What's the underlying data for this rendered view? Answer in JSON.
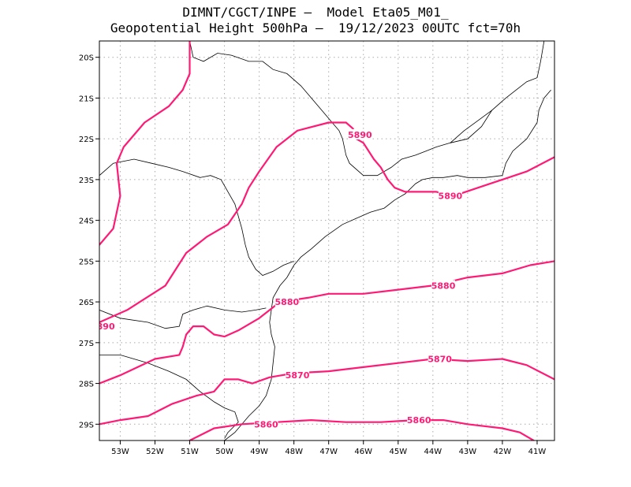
{
  "header": {
    "line1": "DIMNT/CGCT/INPE –  Model Eta05_M01_",
    "line2": "Geopotential Height 500hPa –  19/12/2023 00UTC fct=70h"
  },
  "axes": {
    "lon_min": -53.6,
    "lon_max": -40.5,
    "lat_min": -29.4,
    "lat_max": -19.6,
    "x_ticks": [
      {
        "value": -53,
        "label": "53W"
      },
      {
        "value": -52,
        "label": "52W"
      },
      {
        "value": -51,
        "label": "51W"
      },
      {
        "value": -50,
        "label": "50W"
      },
      {
        "value": -49,
        "label": "49W"
      },
      {
        "value": -48,
        "label": "48W"
      },
      {
        "value": -47,
        "label": "47W"
      },
      {
        "value": -46,
        "label": "46W"
      },
      {
        "value": -45,
        "label": "45W"
      },
      {
        "value": -44,
        "label": "44W"
      },
      {
        "value": -43,
        "label": "43W"
      },
      {
        "value": -42,
        "label": "42W"
      },
      {
        "value": -41,
        "label": "41W"
      }
    ],
    "y_ticks": [
      {
        "value": -20,
        "label": "20S"
      },
      {
        "value": -21,
        "label": "21S"
      },
      {
        "value": -22,
        "label": "22S"
      },
      {
        "value": -23,
        "label": "23S"
      },
      {
        "value": -24,
        "label": "24S"
      },
      {
        "value": -25,
        "label": "25S"
      },
      {
        "value": -26,
        "label": "26S"
      },
      {
        "value": -27,
        "label": "27S"
      },
      {
        "value": -28,
        "label": "28S"
      },
      {
        "value": -29,
        "label": "29S"
      }
    ],
    "grid": "dotted"
  },
  "colors": {
    "contour": "#ff1a75",
    "coast": "#000000",
    "grid": "#aaaaaa"
  },
  "chart_data": {
    "type": "line",
    "series": [
      {
        "name": "5890",
        "label_positions": [
          [
            -46.1,
            -21.9
          ],
          [
            -43.5,
            -23.4
          ]
        ],
        "points": [
          [
            -53.6,
            -24.6
          ],
          [
            -53.2,
            -24.2
          ],
          [
            -53.0,
            -23.4
          ],
          [
            -53.1,
            -22.6
          ],
          [
            -52.9,
            -22.2
          ],
          [
            -52.3,
            -21.6
          ],
          [
            -51.6,
            -21.2
          ],
          [
            -51.2,
            -20.8
          ],
          [
            -51.0,
            -20.4
          ],
          [
            -51.0,
            -19.6
          ]
        ]
      },
      {
        "name": "5890",
        "points": [
          [
            -53.6,
            -26.5
          ],
          [
            -52.8,
            -26.2
          ],
          [
            -51.7,
            -25.6
          ],
          [
            -51.1,
            -24.8
          ],
          [
            -50.5,
            -24.4
          ],
          [
            -49.9,
            -24.1
          ],
          [
            -49.5,
            -23.6
          ],
          [
            -49.3,
            -23.2
          ],
          [
            -49.0,
            -22.8
          ],
          [
            -48.5,
            -22.2
          ],
          [
            -47.9,
            -21.8
          ],
          [
            -47.0,
            -21.6
          ],
          [
            -46.5,
            -21.6
          ],
          [
            -46.3,
            -21.75
          ],
          [
            -46.2,
            -22.0
          ],
          [
            -46.0,
            -22.1
          ],
          [
            -45.7,
            -22.5
          ],
          [
            -45.5,
            -22.7
          ],
          [
            -45.3,
            -23.0
          ],
          [
            -45.1,
            -23.2
          ],
          [
            -44.8,
            -23.3
          ],
          [
            -44.4,
            -23.3
          ],
          [
            -43.9,
            -23.3
          ],
          [
            -43.4,
            -23.4
          ],
          [
            -42.7,
            -23.2
          ],
          [
            -42.0,
            -23.0
          ],
          [
            -41.3,
            -22.8
          ],
          [
            -40.5,
            -22.45
          ]
        ]
      },
      {
        "name": "5880",
        "label_positions": [
          [
            -48.2,
            -26.0
          ],
          [
            -43.7,
            -25.6
          ]
        ],
        "points": [
          [
            -53.6,
            -28.0
          ],
          [
            -53.0,
            -27.8
          ],
          [
            -52.0,
            -27.4
          ],
          [
            -51.3,
            -27.3
          ],
          [
            -51.2,
            -27.1
          ],
          [
            -51.1,
            -26.8
          ],
          [
            -50.9,
            -26.6
          ],
          [
            -50.6,
            -26.6
          ],
          [
            -50.3,
            -26.8
          ],
          [
            -50.0,
            -26.85
          ],
          [
            -49.6,
            -26.7
          ],
          [
            -49.0,
            -26.4
          ],
          [
            -48.4,
            -26.0
          ],
          [
            -47.6,
            -25.9
          ],
          [
            -47.0,
            -25.8
          ],
          [
            -46.0,
            -25.8
          ],
          [
            -45.0,
            -25.7
          ],
          [
            -44.0,
            -25.6
          ],
          [
            -43.0,
            -25.4
          ],
          [
            -42.0,
            -25.3
          ],
          [
            -41.2,
            -25.1
          ],
          [
            -40.5,
            -25.0
          ]
        ]
      },
      {
        "name": "5870",
        "label_positions": [
          [
            -47.9,
            -27.8
          ],
          [
            -43.8,
            -27.4
          ]
        ],
        "points": [
          [
            -53.6,
            -29.0
          ],
          [
            -53.0,
            -28.9
          ],
          [
            -52.2,
            -28.8
          ],
          [
            -51.5,
            -28.5
          ],
          [
            -50.8,
            -28.3
          ],
          [
            -50.3,
            -28.2
          ],
          [
            -50.0,
            -27.9
          ],
          [
            -49.6,
            -27.9
          ],
          [
            -49.2,
            -28.0
          ],
          [
            -48.7,
            -27.85
          ],
          [
            -48.0,
            -27.75
          ],
          [
            -47.0,
            -27.7
          ],
          [
            -46.0,
            -27.6
          ],
          [
            -45.0,
            -27.5
          ],
          [
            -44.0,
            -27.4
          ],
          [
            -43.0,
            -27.45
          ],
          [
            -42.0,
            -27.4
          ],
          [
            -41.3,
            -27.55
          ],
          [
            -40.5,
            -27.9
          ]
        ]
      },
      {
        "name": "5860",
        "label_positions": [
          [
            -48.8,
            -29.0
          ],
          [
            -44.4,
            -28.9
          ]
        ],
        "points": [
          [
            -51.0,
            -29.4
          ],
          [
            -50.3,
            -29.1
          ],
          [
            -49.5,
            -29.0
          ],
          [
            -48.5,
            -28.95
          ],
          [
            -47.5,
            -28.9
          ],
          [
            -46.5,
            -28.95
          ],
          [
            -45.5,
            -28.95
          ],
          [
            -44.5,
            -28.9
          ],
          [
            -43.7,
            -28.9
          ],
          [
            -43.0,
            -29.0
          ],
          [
            -42.0,
            -29.1
          ],
          [
            -41.5,
            -29.2
          ],
          [
            -41.1,
            -29.4
          ]
        ]
      }
    ]
  },
  "boundaries": [
    [
      [
        -51.0,
        -19.6
      ],
      [
        -50.9,
        -20.0
      ],
      [
        -50.6,
        -20.1
      ],
      [
        -50.2,
        -19.9
      ],
      [
        -49.8,
        -19.95
      ],
      [
        -49.3,
        -20.1
      ],
      [
        -48.9,
        -20.1
      ],
      [
        -48.6,
        -20.3
      ],
      [
        -48.2,
        -20.4
      ],
      [
        -47.8,
        -20.7
      ],
      [
        -47.5,
        -21.0
      ],
      [
        -47.2,
        -21.3
      ],
      [
        -46.9,
        -21.6
      ],
      [
        -46.7,
        -21.8
      ],
      [
        -46.6,
        -22.0
      ],
      [
        -46.5,
        -22.4
      ],
      [
        -46.4,
        -22.6
      ],
      [
        -46.0,
        -22.9
      ],
      [
        -45.6,
        -22.9
      ],
      [
        -45.2,
        -22.7
      ],
      [
        -44.9,
        -22.5
      ],
      [
        -44.5,
        -22.4
      ],
      [
        -44.2,
        -22.3
      ],
      [
        -43.9,
        -22.2
      ],
      [
        -43.5,
        -22.1
      ],
      [
        -43.0,
        -22.0
      ],
      [
        -42.6,
        -21.7
      ],
      [
        -42.3,
        -21.3
      ],
      [
        -41.9,
        -21.0
      ],
      [
        -41.6,
        -20.8
      ],
      [
        -41.3,
        -20.6
      ],
      [
        -41.0,
        -20.5
      ],
      [
        -40.9,
        -20.1
      ],
      [
        -40.8,
        -19.6
      ]
    ],
    [
      [
        -53.6,
        -22.9
      ],
      [
        -53.2,
        -22.6
      ],
      [
        -52.6,
        -22.5
      ],
      [
        -52.1,
        -22.6
      ],
      [
        -51.6,
        -22.7
      ],
      [
        -51.2,
        -22.8
      ],
      [
        -50.7,
        -22.95
      ],
      [
        -50.4,
        -22.9
      ],
      [
        -50.1,
        -23.0
      ],
      [
        -49.9,
        -23.3
      ],
      [
        -49.7,
        -23.6
      ],
      [
        -49.6,
        -23.9
      ],
      [
        -49.5,
        -24.2
      ],
      [
        -49.4,
        -24.6
      ],
      [
        -49.3,
        -24.9
      ],
      [
        -49.1,
        -25.2
      ],
      [
        -48.9,
        -25.35
      ],
      [
        -48.6,
        -25.25
      ],
      [
        -48.3,
        -25.1
      ],
      [
        -48.0,
        -25.0
      ]
    ],
    [
      [
        -53.6,
        -26.2
      ],
      [
        -53.0,
        -26.4
      ],
      [
        -52.2,
        -26.5
      ],
      [
        -51.7,
        -26.65
      ],
      [
        -51.3,
        -26.6
      ],
      [
        -51.2,
        -26.3
      ],
      [
        -50.9,
        -26.2
      ],
      [
        -50.5,
        -26.1
      ],
      [
        -50.0,
        -26.2
      ],
      [
        -49.5,
        -26.25
      ],
      [
        -49.1,
        -26.2
      ],
      [
        -48.8,
        -26.15
      ]
    ],
    [
      [
        -53.6,
        -27.3
      ],
      [
        -53.0,
        -27.3
      ],
      [
        -52.2,
        -27.5
      ],
      [
        -51.6,
        -27.7
      ],
      [
        -51.1,
        -27.9
      ],
      [
        -50.7,
        -28.2
      ],
      [
        -50.3,
        -28.45
      ],
      [
        -50.0,
        -28.6
      ],
      [
        -49.7,
        -28.7
      ],
      [
        -49.6,
        -28.95
      ],
      [
        -49.9,
        -29.2
      ],
      [
        -50.0,
        -29.35
      ]
    ],
    [
      [
        -43.5,
        -22.1
      ],
      [
        -43.1,
        -21.8
      ],
      [
        -42.7,
        -21.55
      ],
      [
        -42.3,
        -21.3
      ]
    ]
  ],
  "coastline": [
    [
      [
        -50.0,
        -29.4
      ],
      [
        -49.7,
        -29.2
      ],
      [
        -49.3,
        -28.8
      ],
      [
        -49.0,
        -28.55
      ],
      [
        -48.8,
        -28.3
      ],
      [
        -48.65,
        -27.9
      ],
      [
        -48.6,
        -27.5
      ],
      [
        -48.55,
        -27.1
      ],
      [
        -48.65,
        -26.8
      ],
      [
        -48.7,
        -26.5
      ],
      [
        -48.65,
        -26.2
      ],
      [
        -48.6,
        -25.9
      ],
      [
        -48.4,
        -25.6
      ],
      [
        -48.2,
        -25.4
      ],
      [
        -48.0,
        -25.1
      ],
      [
        -47.8,
        -24.9
      ],
      [
        -47.5,
        -24.7
      ],
      [
        -47.1,
        -24.4
      ],
      [
        -46.6,
        -24.1
      ],
      [
        -46.2,
        -23.95
      ],
      [
        -45.8,
        -23.8
      ],
      [
        -45.4,
        -23.7
      ],
      [
        -45.1,
        -23.5
      ],
      [
        -44.8,
        -23.35
      ],
      [
        -44.5,
        -23.1
      ],
      [
        -44.3,
        -23.0
      ],
      [
        -44.0,
        -22.95
      ],
      [
        -43.7,
        -22.95
      ],
      [
        -43.3,
        -22.9
      ],
      [
        -43.0,
        -22.95
      ],
      [
        -42.5,
        -22.95
      ],
      [
        -42.0,
        -22.9
      ],
      [
        -41.9,
        -22.6
      ],
      [
        -41.7,
        -22.3
      ],
      [
        -41.3,
        -22.0
      ],
      [
        -41.0,
        -21.6
      ],
      [
        -40.95,
        -21.3
      ],
      [
        -40.8,
        -21.0
      ],
      [
        -40.6,
        -20.8
      ]
    ]
  ]
}
